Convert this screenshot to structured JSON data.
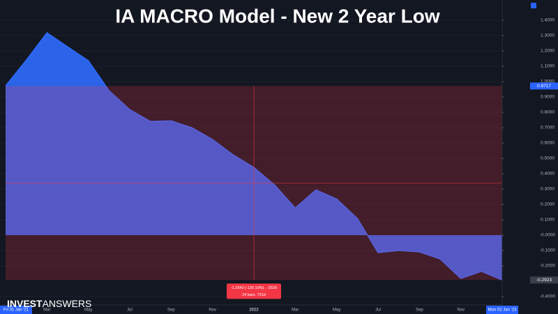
{
  "chart_data": {
    "type": "area",
    "title": "IA MACRO Model - New 2 Year Low",
    "logo": {
      "bold": "INVEST",
      "light": "ANSWERS"
    },
    "categories": [
      "Fri 01 Jan '21",
      null,
      "Mar",
      null,
      "May",
      null,
      "Jul",
      null,
      "Sep",
      null,
      "Nov",
      null,
      "2022",
      null,
      "Mar",
      null,
      "May",
      null,
      "Jul",
      null,
      "Sep",
      null,
      "Nov",
      null,
      "Mon 02 Jan '23"
    ],
    "series": [
      {
        "name": "IA MACRO Model",
        "color": "#2f6bff",
        "values": [
          0.9717,
          1.14,
          1.318,
          1.227,
          1.136,
          0.941,
          0.818,
          0.741,
          0.745,
          0.7,
          0.623,
          0.523,
          0.441,
          0.327,
          0.177,
          0.295,
          0.236,
          0.109,
          -0.114,
          -0.1,
          -0.109,
          -0.155,
          -0.282,
          -0.236,
          -0.2923
        ]
      }
    ],
    "ylim": [
      -0.4545,
      1.5318
    ],
    "yticks": [
      {
        "value": 1.4,
        "label": "1.4000"
      },
      {
        "value": 1.3,
        "label": "1.3000"
      },
      {
        "value": 1.2,
        "label": "1.2000"
      },
      {
        "value": 1.1,
        "label": "1.1000"
      },
      {
        "value": 1.0,
        "label": "1.0000"
      },
      {
        "value": 0.9,
        "label": "0.9000"
      },
      {
        "value": 0.8,
        "label": "0.8000"
      },
      {
        "value": 0.7,
        "label": "0.7000"
      },
      {
        "value": 0.6,
        "label": "0.6000"
      },
      {
        "value": 0.5,
        "label": "0.5000"
      },
      {
        "value": 0.4,
        "label": "0.4000"
      },
      {
        "value": 0.3,
        "label": "0.3000"
      },
      {
        "value": 0.2,
        "label": "0.2000"
      },
      {
        "value": 0.1,
        "label": "0.1000"
      },
      {
        "value": 0,
        "label": "-0.0000"
      },
      {
        "value": -0.1,
        "label": "-0.1000"
      },
      {
        "value": -0.2,
        "label": "-0.2000"
      },
      {
        "value": -0.4,
        "label": "-0.4000"
      }
    ],
    "price_markers": [
      {
        "value": 0.9717,
        "label": "0.9717",
        "color": "#2962ff"
      },
      {
        "value": -0.2923,
        "label": "-0.2923",
        "color": "#3a3e4a"
      }
    ],
    "measure": {
      "color": "#f23645",
      "lines": [
        "-1.2643 (-130.10%) , -2526",
        "24 bars, 731d"
      ]
    },
    "grid": true
  }
}
